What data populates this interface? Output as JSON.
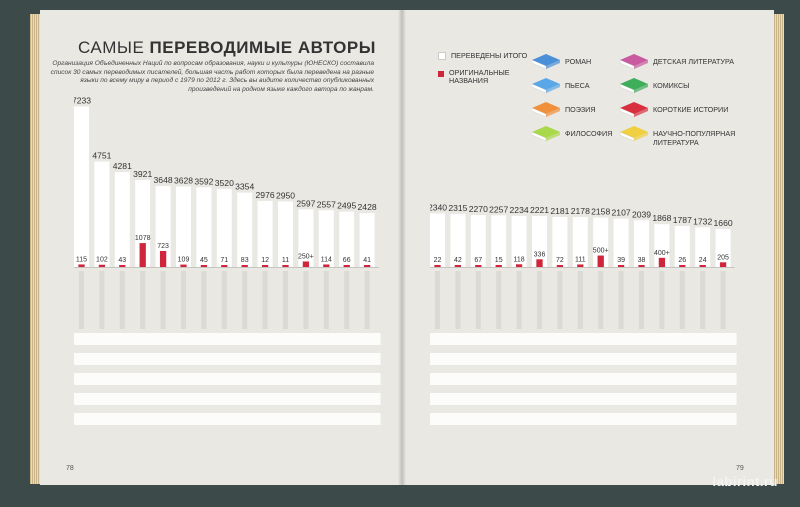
{
  "page": {
    "title_light": "САМЫЕ",
    "title_bold": "ПЕРЕВОДИМЫЕ АВТОРЫ",
    "intro": "Организация Объединенных Наций по вопросам образования, науки и культуры (ЮНЕСКО) составила список 30 самых переводимых писателей, большая часть работ которых была переведена на разные языки по всему миру в период с 1979 по 2012 г. Здесь вы видите количество опубликованных произведений на родном языке каждого автора по жанрам.",
    "page_left": "78",
    "page_right": "79",
    "watermark": "labirint.ru",
    "legend": {
      "total": "ПЕРЕВЕДЕНЫ ИТОГО",
      "original": "ОРИГИНАЛЬНЫЕ НАЗВАНИЯ",
      "genres": [
        {
          "label": "РОМАН",
          "color": "#4a8fd8"
        },
        {
          "label": "ПЬЕСА",
          "color": "#5aa7e8"
        },
        {
          "label": "ПОЭЗИЯ",
          "color": "#f0903a"
        },
        {
          "label": "ФИЛОСОФИЯ",
          "color": "#a9d84a"
        },
        {
          "label": "ДЕТСКАЯ ЛИТЕРАТУРА",
          "color": "#c95aa0"
        },
        {
          "label": "КОМИКСЫ",
          "color": "#3fae5b"
        },
        {
          "label": "КОРОТКИЕ ИСТОРИИ",
          "color": "#d8303e"
        },
        {
          "label": "НАУЧНО-ПОПУЛЯРНАЯ ЛИТЕРАТУРА",
          "color": "#f0d040"
        }
      ]
    },
    "colors": {
      "total_bar": "#ffffff",
      "original_bar": "#d0263b",
      "page": "#e9e8e3"
    }
  },
  "chart_data": [
    {
      "type": "bar",
      "series": [
        {
          "name": "ПЕРЕВЕДЕНЫ ИТОГО",
          "values": [
            7233,
            4751,
            4281,
            3921,
            3648,
            3628,
            3592,
            3520,
            3354,
            2976,
            2950,
            2597,
            2557,
            2495,
            2428
          ]
        },
        {
          "name": "ОРИГИНАЛЬНЫЕ НАЗВАНИЯ",
          "values": [
            115,
            102,
            43,
            1078,
            723,
            109,
            45,
            71,
            83,
            12,
            11,
            250,
            114,
            66,
            41
          ]
        }
      ],
      "total_labels": [
        "7233",
        "4751",
        "4281",
        "3921",
        "3648",
        "3628",
        "3592",
        "3520",
        "3354",
        "2976",
        "2950",
        "2597",
        "2557",
        "2495",
        "2428"
      ],
      "original_labels": [
        "115",
        "102",
        "43",
        "1078",
        "723",
        "109",
        "45",
        "71",
        "83",
        "12",
        "11",
        "250+",
        "114",
        "66",
        "41"
      ],
      "ylim": [
        0,
        7300
      ]
    },
    {
      "type": "bar",
      "series": [
        {
          "name": "ПЕРЕВЕДЕНЫ ИТОГО",
          "values": [
            2340,
            2315,
            2270,
            2257,
            2234,
            2221,
            2181,
            2178,
            2158,
            2107,
            2039,
            1868,
            1787,
            1732,
            1660
          ]
        },
        {
          "name": "ОРИГИНАЛЬНЫЕ НАЗВАНИЯ",
          "values": [
            22,
            42,
            67,
            15,
            118,
            336,
            72,
            111,
            500,
            39,
            38,
            400,
            26,
            24,
            205
          ]
        }
      ],
      "total_labels": [
        "2340",
        "2315",
        "2270",
        "2257",
        "2234",
        "2221",
        "2181",
        "2178",
        "2158",
        "2107",
        "2039",
        "1868",
        "1787",
        "1732",
        "1660"
      ],
      "original_labels": [
        "22",
        "42",
        "67",
        "15",
        "118",
        "336",
        "72",
        "111",
        "500+",
        "39",
        "38",
        "400+",
        "26",
        "24",
        "205"
      ],
      "ylim": [
        0,
        2400
      ]
    }
  ]
}
